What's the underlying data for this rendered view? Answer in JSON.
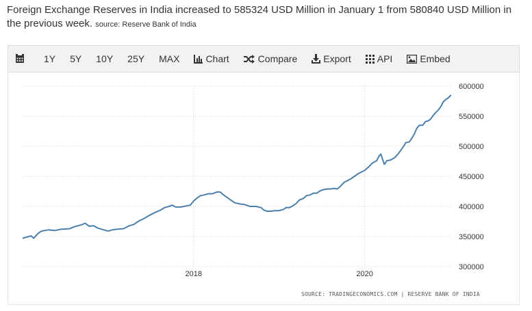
{
  "headline": {
    "text": "Foreign Exchange Reserves in India increased to 585324 USD Million in January 1 from 580840 USD Million in the previous week.",
    "source": "source: Reserve Bank of India"
  },
  "toolbar": {
    "calendar_icon": "calendar-icon",
    "ranges": [
      "1Y",
      "5Y",
      "10Y",
      "25Y",
      "MAX"
    ],
    "chart_label": "Chart",
    "compare_label": "Compare",
    "export_label": "Export",
    "api_label": "API",
    "embed_label": "Embed"
  },
  "footer": {
    "source": "SOURCE: TRADINGECONOMICS.COM | RESERVE BANK OF INDIA"
  },
  "chart_data": {
    "type": "line",
    "title": "",
    "xlabel": "",
    "ylabel": "",
    "color": "#4a7fab",
    "grid": true,
    "ylim": [
      300000,
      600000
    ],
    "xlim": [
      2016.0,
      2021.02
    ],
    "x_ticks": [
      2018,
      2020
    ],
    "y_ticks": [
      300000,
      350000,
      400000,
      450000,
      500000,
      550000,
      600000
    ],
    "series": [
      {
        "values": [
          [
            2016.0,
            347000
          ],
          [
            2016.05,
            349000
          ],
          [
            2016.1,
            351000
          ],
          [
            2016.13,
            347000
          ],
          [
            2016.18,
            355000
          ],
          [
            2016.22,
            359000
          ],
          [
            2016.3,
            361000
          ],
          [
            2016.38,
            360000
          ],
          [
            2016.45,
            362000
          ],
          [
            2016.55,
            363000
          ],
          [
            2016.6,
            366000
          ],
          [
            2016.65,
            368000
          ],
          [
            2016.7,
            370000
          ],
          [
            2016.73,
            372000
          ],
          [
            2016.78,
            367000
          ],
          [
            2016.83,
            368000
          ],
          [
            2016.88,
            364000
          ],
          [
            2016.95,
            361000
          ],
          [
            2017.0,
            359000
          ],
          [
            2017.05,
            361000
          ],
          [
            2017.1,
            362000
          ],
          [
            2017.18,
            363000
          ],
          [
            2017.25,
            368000
          ],
          [
            2017.3,
            370000
          ],
          [
            2017.35,
            375000
          ],
          [
            2017.42,
            380000
          ],
          [
            2017.48,
            385000
          ],
          [
            2017.55,
            390000
          ],
          [
            2017.6,
            393000
          ],
          [
            2017.66,
            398000
          ],
          [
            2017.71,
            400000
          ],
          [
            2017.75,
            402000
          ],
          [
            2017.79,
            399000
          ],
          [
            2017.85,
            399000
          ],
          [
            2017.92,
            401000
          ],
          [
            2017.96,
            402000
          ],
          [
            2018.0,
            409000
          ],
          [
            2018.04,
            414000
          ],
          [
            2018.08,
            418000
          ],
          [
            2018.12,
            419000
          ],
          [
            2018.17,
            421000
          ],
          [
            2018.22,
            421000
          ],
          [
            2018.27,
            424000
          ],
          [
            2018.31,
            424000
          ],
          [
            2018.36,
            418000
          ],
          [
            2018.42,
            412000
          ],
          [
            2018.48,
            406000
          ],
          [
            2018.55,
            404000
          ],
          [
            2018.6,
            403000
          ],
          [
            2018.66,
            400000
          ],
          [
            2018.73,
            400000
          ],
          [
            2018.79,
            398000
          ],
          [
            2018.82,
            394000
          ],
          [
            2018.86,
            392000
          ],
          [
            2018.9,
            392000
          ],
          [
            2018.95,
            393000
          ],
          [
            2019.0,
            393000
          ],
          [
            2019.05,
            395000
          ],
          [
            2019.08,
            398000
          ],
          [
            2019.12,
            398000
          ],
          [
            2019.16,
            401000
          ],
          [
            2019.2,
            405000
          ],
          [
            2019.24,
            411000
          ],
          [
            2019.28,
            413000
          ],
          [
            2019.32,
            418000
          ],
          [
            2019.36,
            419000
          ],
          [
            2019.4,
            422000
          ],
          [
            2019.44,
            422000
          ],
          [
            2019.48,
            426000
          ],
          [
            2019.52,
            428000
          ],
          [
            2019.56,
            429000
          ],
          [
            2019.6,
            429000
          ],
          [
            2019.64,
            430000
          ],
          [
            2019.68,
            429000
          ],
          [
            2019.72,
            434000
          ],
          [
            2019.76,
            440000
          ],
          [
            2019.8,
            443000
          ],
          [
            2019.84,
            446000
          ],
          [
            2019.88,
            450000
          ],
          [
            2019.92,
            454000
          ],
          [
            2019.96,
            457000
          ],
          [
            2020.0,
            460000
          ],
          [
            2020.05,
            466000
          ],
          [
            2020.09,
            472000
          ],
          [
            2020.14,
            476000
          ],
          [
            2020.17,
            484000
          ],
          [
            2020.19,
            487000
          ],
          [
            2020.21,
            478000
          ],
          [
            2020.23,
            470000
          ],
          [
            2020.26,
            476000
          ],
          [
            2020.3,
            477000
          ],
          [
            2020.35,
            481000
          ],
          [
            2020.39,
            487000
          ],
          [
            2020.42,
            493000
          ],
          [
            2020.46,
            501000
          ],
          [
            2020.48,
            506000
          ],
          [
            2020.52,
            507000
          ],
          [
            2020.55,
            513000
          ],
          [
            2020.58,
            520000
          ],
          [
            2020.61,
            530000
          ],
          [
            2020.64,
            535000
          ],
          [
            2020.68,
            535000
          ],
          [
            2020.71,
            541000
          ],
          [
            2020.74,
            542000
          ],
          [
            2020.77,
            545000
          ],
          [
            2020.8,
            551000
          ],
          [
            2020.83,
            556000
          ],
          [
            2020.86,
            560000
          ],
          [
            2020.89,
            566000
          ],
          [
            2020.92,
            574000
          ],
          [
            2020.95,
            578000
          ],
          [
            2020.98,
            580840
          ],
          [
            2021.01,
            585324
          ]
        ]
      }
    ]
  }
}
